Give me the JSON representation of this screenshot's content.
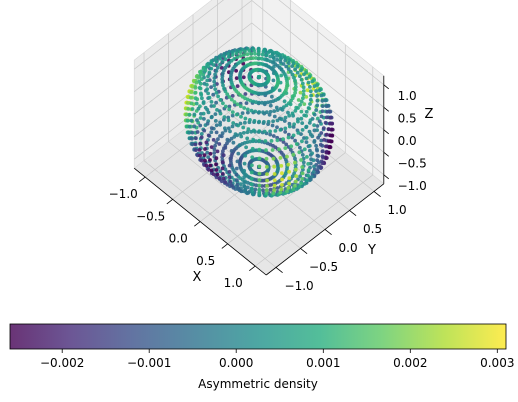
{
  "chart_data": {
    "type": "scatter",
    "projection": "3d",
    "shape": "sphere",
    "x_range": [
      -1.0,
      1.0
    ],
    "y_range": [
      -1.0,
      1.0
    ],
    "z_range": [
      -1.0,
      1.0
    ],
    "axes": {
      "x": {
        "label": "X",
        "ticks": [
          "−1.0",
          "−0.5",
          "0.0",
          "0.5",
          "1.0"
        ],
        "values": [
          -1.0,
          -0.5,
          0.0,
          0.5,
          1.0
        ]
      },
      "y": {
        "label": "Y",
        "ticks": [
          "−1.0",
          "−0.5",
          "0.0",
          "0.5",
          "1.0"
        ],
        "values": [
          -1.0,
          -0.5,
          0.0,
          0.5,
          1.0
        ]
      },
      "z": {
        "label": "Z",
        "ticks": [
          "−1.0",
          "−0.5",
          "0.0",
          "0.5",
          "1.0"
        ],
        "values": [
          -1.0,
          -0.5,
          0.0,
          0.5,
          1.0
        ]
      }
    },
    "grid": true,
    "colorbar": {
      "label": "Asymmetric density",
      "orientation": "horizontal",
      "placement": "bottom",
      "colormap": "viridis",
      "alpha": 0.8,
      "range": [
        -0.0026,
        0.0031
      ],
      "tick_values": [
        -0.002,
        -0.001,
        0.0,
        0.001,
        0.002,
        0.003
      ],
      "tick_labels": [
        "−0.002",
        "−0.001",
        "0.000",
        "0.001",
        "0.002",
        "0.003"
      ]
    },
    "point_sampling": {
      "theta_count": 24,
      "phi_count": 30,
      "point_spacing": "dense rings along meridians"
    }
  }
}
